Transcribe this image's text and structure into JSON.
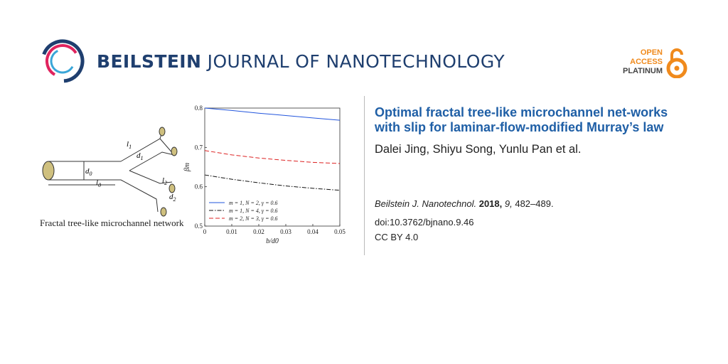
{
  "journal": {
    "name_bold": "BEILSTEIN",
    "name_light": " JOURNAL OF NANOTECHNOLOGY"
  },
  "open_access": {
    "line1": "OPEN",
    "line2": "ACCESS",
    "line3": "PLATINUM"
  },
  "article": {
    "title": "Optimal fractal tree-like microchannel net-works with slip for laminar-flow-modified Murray’s law",
    "authors": "Dalei Jing, Shiyu Song, Yunlu Pan et al.",
    "journal_abbrev": "Beilstein J. Nanotechnol.",
    "year": "2018,",
    "volume": " 9,",
    "pages": " 482–489.",
    "doi": "doi:10.3762/bjnano.9.46",
    "license": "CC BY 4.0"
  },
  "figure": {
    "caption": "Fractal tree-like microchannel network",
    "labels": {
      "l0": "l0",
      "d0": "d0",
      "l1": "l1",
      "d1": "d1",
      "l2": "l2",
      "d2": "d2"
    }
  },
  "chart_data": {
    "type": "line",
    "title": "",
    "xlabel": "b/d0",
    "ylabel": "βm",
    "xlim": [
      0,
      0.05
    ],
    "ylim": [
      0.5,
      0.8
    ],
    "x_ticks": [
      "0",
      "0.01",
      "0.02",
      "0.03",
      "0.04",
      "0.05"
    ],
    "y_ticks": [
      "0.5",
      "0.6",
      "0.7",
      "0.8"
    ],
    "legend_position": "bottom-left",
    "series": [
      {
        "name": "m = 1, N = 2, γ = 0.6",
        "color": "#2255dd",
        "dash": "solid",
        "x": [
          0,
          0.01,
          0.02,
          0.03,
          0.04,
          0.05
        ],
        "y": [
          0.8,
          0.794,
          0.787,
          0.781,
          0.775,
          0.769
        ]
      },
      {
        "name": "m = 1, N = 4, γ = 0.6",
        "color": "#111111",
        "dash": "dashdot",
        "x": [
          0,
          0.01,
          0.02,
          0.03,
          0.04,
          0.05
        ],
        "y": [
          0.63,
          0.619,
          0.61,
          0.602,
          0.596,
          0.591
        ]
      },
      {
        "name": "m = 2, N = 3, γ = 0.6",
        "color": "#dd2222",
        "dash": "dashed",
        "x": [
          0,
          0.01,
          0.02,
          0.03,
          0.04,
          0.05
        ],
        "y": [
          0.692,
          0.681,
          0.673,
          0.667,
          0.662,
          0.659
        ]
      }
    ]
  }
}
